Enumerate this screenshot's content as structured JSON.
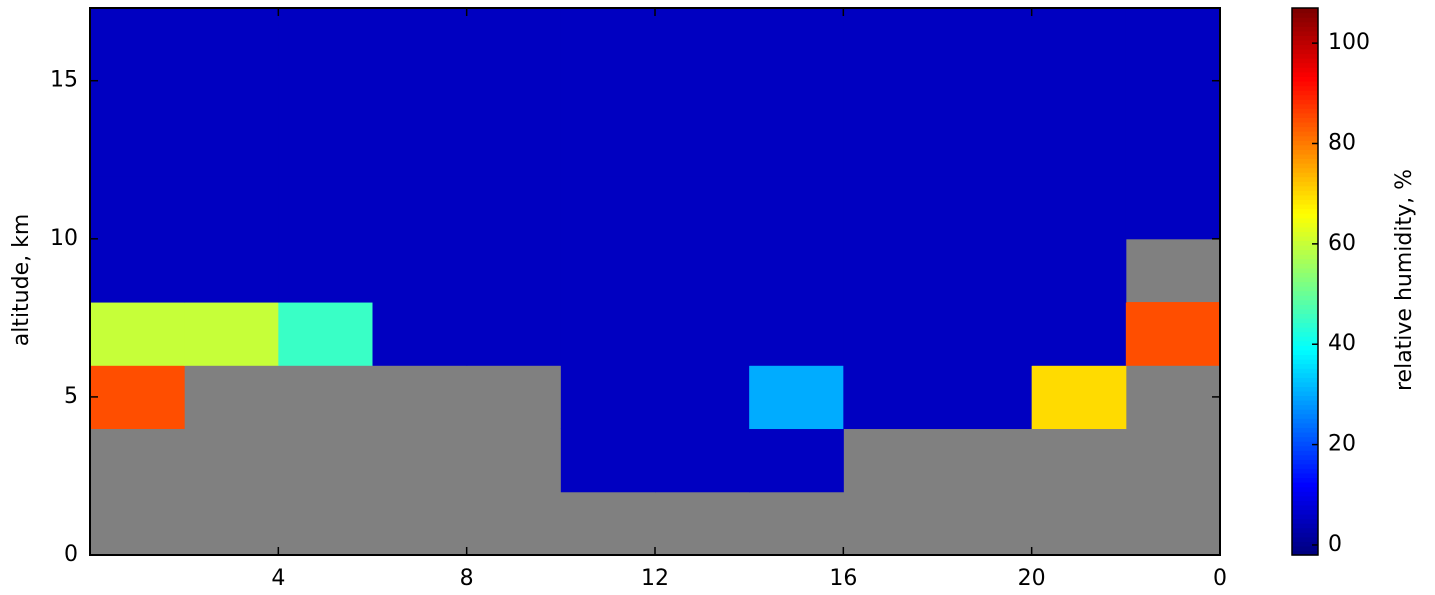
{
  "chart_data": {
    "type": "heatmap",
    "xlabel": null,
    "ylabel": "altitude, km",
    "colorbar_label": "relative humidity, %",
    "x_edges": [
      0,
      2,
      4,
      6,
      8,
      10,
      12,
      14,
      16,
      18,
      20,
      22,
      24
    ],
    "y_edges": [
      0,
      2,
      4,
      6,
      8,
      10,
      12,
      14,
      16,
      17.3
    ],
    "z": [
      [
        null,
        null,
        null,
        null,
        null,
        null,
        null,
        null,
        null,
        null,
        null,
        null
      ],
      [
        null,
        null,
        null,
        null,
        null,
        5,
        5,
        5,
        null,
        null,
        null,
        null
      ],
      [
        85,
        null,
        null,
        null,
        null,
        5,
        5,
        30,
        5,
        5,
        70,
        null
      ],
      [
        60,
        60,
        45,
        5,
        5,
        5,
        5,
        5,
        5,
        5,
        5,
        85
      ],
      [
        5,
        5,
        5,
        5,
        5,
        5,
        5,
        5,
        5,
        5,
        5,
        null
      ],
      [
        5,
        5,
        5,
        5,
        5,
        5,
        5,
        5,
        5,
        5,
        5,
        5
      ],
      [
        5,
        5,
        5,
        5,
        5,
        5,
        5,
        5,
        5,
        5,
        5,
        5
      ],
      [
        5,
        5,
        5,
        5,
        5,
        5,
        5,
        5,
        5,
        5,
        5,
        5
      ],
      [
        5,
        5,
        5,
        5,
        5,
        5,
        5,
        5,
        5,
        5,
        5,
        5
      ]
    ],
    "mask_color": "#808080",
    "colormap": "jet",
    "xlim": [
      0,
      24
    ],
    "xticks": [
      4,
      8,
      12,
      16,
      20,
      {
        "value": 24,
        "label": "0"
      }
    ],
    "ylim": [
      0,
      17.3
    ],
    "yticks": [
      0,
      5,
      10,
      15
    ],
    "clim": [
      -2,
      107
    ],
    "cticks": [
      0,
      20,
      40,
      60,
      80,
      100
    ]
  }
}
